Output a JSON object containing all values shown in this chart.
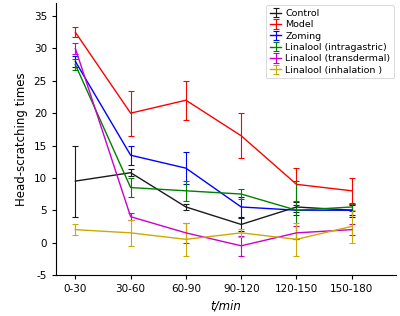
{
  "x_labels": [
    "0-30",
    "30-60",
    "60-90",
    "90-120",
    "120-150",
    "150-180"
  ],
  "x_positions": [
    0,
    1,
    2,
    3,
    4,
    5
  ],
  "series": [
    {
      "label": "Control",
      "color": "#1a1a1a",
      "y": [
        9.5,
        10.8,
        5.5,
        2.8,
        5.5,
        5.0
      ],
      "yerr": [
        5.5,
        0.5,
        0.5,
        1.0,
        0.8,
        1.0
      ]
    },
    {
      "label": "Model",
      "color": "#ff0000",
      "y": [
        32.5,
        20.0,
        22.0,
        16.5,
        9.0,
        8.0
      ],
      "yerr": [
        0.8,
        3.5,
        3.0,
        3.5,
        2.5,
        2.0
      ]
    },
    {
      "label": "Zoming",
      "color": "#0000ff",
      "y": [
        28.0,
        13.5,
        11.5,
        5.5,
        5.0,
        5.0
      ],
      "yerr": [
        0.8,
        1.5,
        2.5,
        1.5,
        0.8,
        0.8
      ]
    },
    {
      "label": "Linalool (intragastric)",
      "color": "#008000",
      "y": [
        27.5,
        8.5,
        8.0,
        7.5,
        5.0,
        5.5
      ],
      "yerr": [
        0.8,
        1.5,
        1.5,
        0.8,
        4.5,
        0.6
      ]
    },
    {
      "label": "Linalool (transdermal)",
      "color": "#cc00cc",
      "y": [
        30.0,
        4.0,
        1.5,
        -0.5,
        1.5,
        2.0
      ],
      "yerr": [
        0.8,
        0.5,
        1.5,
        1.5,
        1.0,
        0.8
      ]
    },
    {
      "label": "Linalool (inhalation )",
      "color": "#ccaa00",
      "y": [
        2.0,
        1.5,
        0.5,
        1.5,
        0.5,
        2.5
      ],
      "yerr": [
        0.8,
        2.0,
        2.5,
        0.6,
        2.5,
        2.5
      ]
    }
  ],
  "xlabel": "t/min",
  "ylabel": "Head-scratching times",
  "ylim": [
    -5,
    37
  ],
  "yticks": [
    -5,
    0,
    5,
    10,
    15,
    20,
    25,
    30,
    35
  ],
  "background_color": "#ffffff",
  "legend_fontsize": 6.8,
  "axis_label_fontsize": 8.5,
  "tick_fontsize": 7.5
}
